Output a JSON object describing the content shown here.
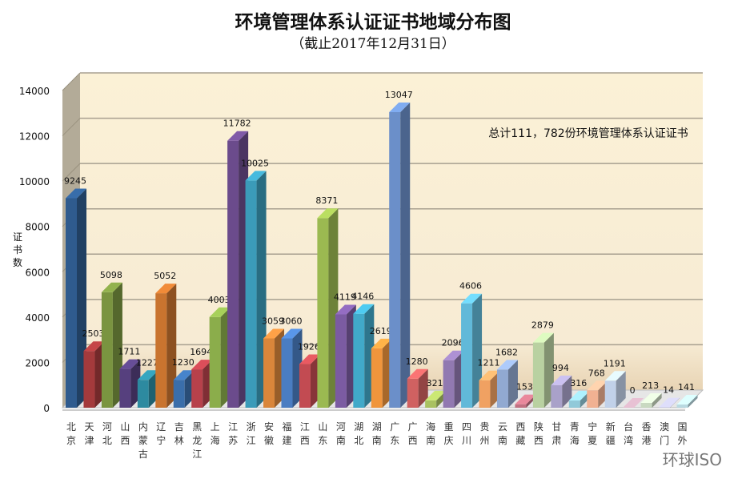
{
  "chart_data": {
    "type": "bar",
    "style": "3d-column",
    "title": "环境管理体系认证证书地域分布图",
    "subtitle": "（截止2017年12月31日）",
    "ylabel": "证书数",
    "xlabel": "",
    "ylim": [
      0,
      14000
    ],
    "yticks": [
      0,
      2000,
      4000,
      6000,
      8000,
      10000,
      12000,
      14000
    ],
    "grid": true,
    "annotation": "总计111，782份环境管理体系认证证书",
    "categories": [
      "北京",
      "天津",
      "河北",
      "山西",
      "内蒙古",
      "辽宁",
      "吉林",
      "黑龙江",
      "上海",
      "江苏",
      "浙江",
      "安徽",
      "福建",
      "江西",
      "山东",
      "河南",
      "湖北",
      "湖南",
      "广东",
      "广西",
      "海南",
      "重庆",
      "四川",
      "贵州",
      "云南",
      "西藏",
      "陕西",
      "甘肃",
      "青海",
      "宁夏",
      "新疆",
      "台湾",
      "香港",
      "澳门",
      "国外"
    ],
    "values": [
      9245,
      2503,
      5098,
      1711,
      1227,
      5052,
      1230,
      1694,
      4003,
      11782,
      10025,
      3059,
      3060,
      1926,
      8371,
      4119,
      4146,
      2619,
      13047,
      1280,
      321,
      2096,
      4606,
      1211,
      1682,
      153,
      2879,
      994,
      316,
      768,
      1191,
      0,
      213,
      14,
      141
    ],
    "colors": [
      "#2f5b8e",
      "#a43a3c",
      "#7a9440",
      "#56407e",
      "#2d8aa0",
      "#c9742f",
      "#3a6eaa",
      "#b7414b",
      "#8bad4b",
      "#6b4b8c",
      "#3b9bb9",
      "#d9863b",
      "#4a7dc2",
      "#c24b52",
      "#9bb951",
      "#7b5ba2",
      "#41a9c9",
      "#f0953c",
      "#6b8fc9",
      "#d06161",
      "#a9c161",
      "#9179b1",
      "#61b9d9",
      "#f0a162",
      "#91a9d1",
      "#c27182",
      "#b9d1a1",
      "#a9a1c9",
      "#91c9d9",
      "#f1b192",
      "#c1d1e9",
      "#c1a1b1",
      "#c9d9c1",
      "#b9b9d1",
      "#b9d9e1"
    ]
  },
  "watermark": "环球ISO"
}
